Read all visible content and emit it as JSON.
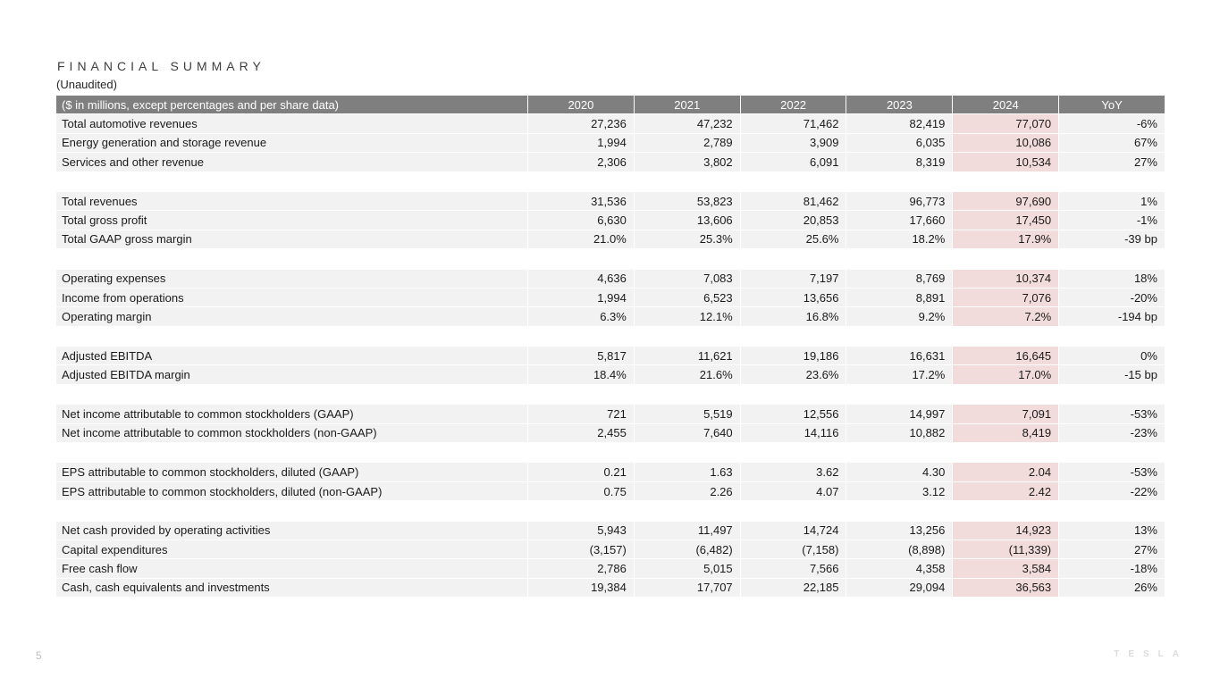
{
  "page": {
    "title": "FINANCIAL SUMMARY",
    "subtitle": "(Unaudited)",
    "page_number": "5",
    "logo_text": "TESLA"
  },
  "colors": {
    "header_bg": "#7f7f7f",
    "header_text": "#ffffff",
    "row_bg": "#f2f2f2",
    "highlight_2024_bg": "#f2dcdb",
    "body_text": "#1a1a1a"
  },
  "table": {
    "header": {
      "label": "($ in millions, except percentages and per share data)",
      "columns": [
        "2020",
        "2021",
        "2022",
        "2023",
        "2024",
        "YoY"
      ]
    },
    "highlight_column": "2024",
    "sections": [
      {
        "rows": [
          {
            "label": "Total automotive revenues",
            "values": [
              "27,236",
              "47,232",
              "71,462",
              "82,419",
              "77,070",
              "-6%"
            ]
          },
          {
            "label": "Energy generation and storage revenue",
            "values": [
              "1,994",
              "2,789",
              "3,909",
              "6,035",
              "10,086",
              "67%"
            ]
          },
          {
            "label": "Services and other revenue",
            "values": [
              "2,306",
              "3,802",
              "6,091",
              "8,319",
              "10,534",
              "27%"
            ]
          }
        ]
      },
      {
        "rows": [
          {
            "label": "Total revenues",
            "values": [
              "31,536",
              "53,823",
              "81,462",
              "96,773",
              "97,690",
              "1%"
            ]
          },
          {
            "label": "Total gross profit",
            "values": [
              "6,630",
              "13,606",
              "20,853",
              "17,660",
              "17,450",
              "-1%"
            ]
          },
          {
            "label": "Total GAAP gross margin",
            "values": [
              "21.0%",
              "25.3%",
              "25.6%",
              "18.2%",
              "17.9%",
              "-39 bp"
            ]
          }
        ]
      },
      {
        "rows": [
          {
            "label": "Operating expenses",
            "values": [
              "4,636",
              "7,083",
              "7,197",
              "8,769",
              "10,374",
              "18%"
            ]
          },
          {
            "label": "Income from operations",
            "values": [
              "1,994",
              "6,523",
              "13,656",
              "8,891",
              "7,076",
              "-20%"
            ]
          },
          {
            "label": "Operating margin",
            "values": [
              "6.3%",
              "12.1%",
              "16.8%",
              "9.2%",
              "7.2%",
              "-194 bp"
            ]
          }
        ]
      },
      {
        "rows": [
          {
            "label": "Adjusted EBITDA",
            "values": [
              "5,817",
              "11,621",
              "19,186",
              "16,631",
              "16,645",
              "0%"
            ]
          },
          {
            "label": "Adjusted EBITDA margin",
            "values": [
              "18.4%",
              "21.6%",
              "23.6%",
              "17.2%",
              "17.0%",
              "-15 bp"
            ]
          }
        ]
      },
      {
        "rows": [
          {
            "label": "Net income attributable to common stockholders (GAAP)",
            "values": [
              "721",
              "5,519",
              "12,556",
              "14,997",
              "7,091",
              "-53%"
            ]
          },
          {
            "label": "Net income attributable to common stockholders (non-GAAP)",
            "values": [
              "2,455",
              "7,640",
              "14,116",
              "10,882",
              "8,419",
              "-23%"
            ]
          }
        ]
      },
      {
        "rows": [
          {
            "label": "EPS attributable to common stockholders, diluted (GAAP)",
            "values": [
              "0.21",
              "1.63",
              "3.62",
              "4.30",
              "2.04",
              "-53%"
            ]
          },
          {
            "label": "EPS attributable to common stockholders, diluted (non-GAAP)",
            "values": [
              "0.75",
              "2.26",
              "4.07",
              "3.12",
              "2.42",
              "-22%"
            ]
          }
        ]
      },
      {
        "rows": [
          {
            "label": "Net cash provided by operating activities",
            "values": [
              "5,943",
              "11,497",
              "14,724",
              "13,256",
              "14,923",
              "13%"
            ]
          },
          {
            "label": "Capital expenditures",
            "values": [
              "(3,157)",
              "(6,482)",
              "(7,158)",
              "(8,898)",
              "(11,339)",
              "27%"
            ]
          },
          {
            "label": "Free cash flow",
            "values": [
              "2,786",
              "5,015",
              "7,566",
              "4,358",
              "3,584",
              "-18%"
            ]
          },
          {
            "label": "Cash, cash equivalents and investments",
            "values": [
              "19,384",
              "17,707",
              "22,185",
              "29,094",
              "36,563",
              "26%"
            ]
          }
        ]
      }
    ]
  }
}
